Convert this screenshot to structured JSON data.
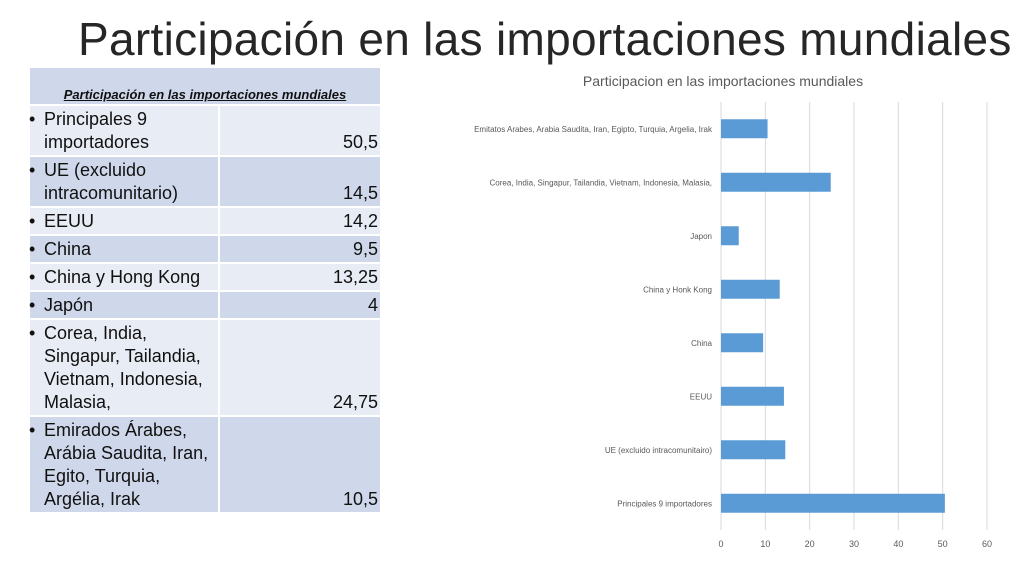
{
  "slide": {
    "title": "Participación en las importaciones mundiales"
  },
  "table": {
    "header": "Participación en las importaciones mundiales",
    "rows": [
      {
        "label": "Principales 9 importadores",
        "value": "50,5"
      },
      {
        "label": "UE (excluido intracomunitario)",
        "value": "14,5"
      },
      {
        "label": "EEUU",
        "value": "14,2"
      },
      {
        "label": "China",
        "value": "9,5"
      },
      {
        "label": "China y Hong Kong",
        "value": "13,25"
      },
      {
        "label": "Japón",
        "value": "4"
      },
      {
        "label": "Corea, India, Singapur, Tailandia, Vietnam, Indonesia, Malasia,",
        "value": "24,75"
      },
      {
        "label": "Emirados Árabes, Arábia Saudita, Iran, Egito, Turquia, Argélia, Irak",
        "value": "10,5"
      }
    ]
  },
  "chart_data": {
    "type": "bar",
    "orientation": "horizontal",
    "title": "Participacion en las importaciones mundiales",
    "categories": [
      "Emitatos Arabes, Arabia Saudita, Iran, Egipto, Turquia, Argelia, Irak",
      "Corea, India, Singapur, Tailandia, Vietnam, Indonesia, Malasia,",
      "Japon",
      "China y Honk Kong",
      "China",
      "EEUU",
      "UE (excluido intracomunitairo)",
      "Principales 9 importadores"
    ],
    "values": [
      10.5,
      24.75,
      4,
      13.25,
      9.5,
      14.2,
      14.5,
      50.5
    ],
    "xlim": [
      0,
      60
    ],
    "xticks": [
      0,
      10,
      20,
      30,
      40,
      50,
      60
    ],
    "grid": true,
    "legend": "none",
    "bar_color": "#5b9bd5"
  }
}
